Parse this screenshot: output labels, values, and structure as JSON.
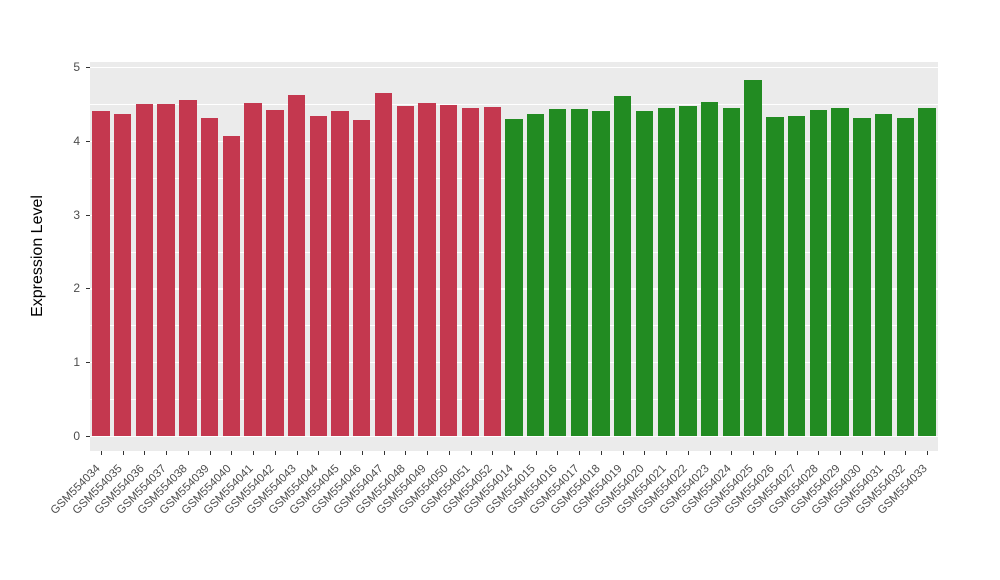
{
  "chart_data": {
    "type": "bar",
    "title": "",
    "xlabel": "",
    "ylabel": "Expression Level",
    "ylim": [
      0,
      5
    ],
    "yticks": [
      0,
      1,
      2,
      3,
      4,
      5
    ],
    "grid": "on",
    "legend": "none",
    "panel_background": "#ebebeb",
    "gridline_color": "#ffffff",
    "categories": [
      "GSM554034",
      "GSM554035",
      "GSM554036",
      "GSM554037",
      "GSM554038",
      "GSM554039",
      "GSM554040",
      "GSM554041",
      "GSM554042",
      "GSM554043",
      "GSM554044",
      "GSM554045",
      "GSM554046",
      "GSM554047",
      "GSM554048",
      "GSM554049",
      "GSM554050",
      "GSM554051",
      "GSM554052",
      "GSM554014",
      "GSM554015",
      "GSM554016",
      "GSM554017",
      "GSM554018",
      "GSM554019",
      "GSM554020",
      "GSM554021",
      "GSM554022",
      "GSM554023",
      "GSM554024",
      "GSM554025",
      "GSM554026",
      "GSM554027",
      "GSM554028",
      "GSM554029",
      "GSM554030",
      "GSM554031",
      "GSM554032",
      "GSM554033"
    ],
    "values": [
      4.41,
      4.36,
      4.5,
      4.5,
      4.55,
      4.31,
      4.06,
      4.51,
      4.42,
      4.62,
      4.33,
      4.4,
      4.28,
      4.65,
      4.47,
      4.51,
      4.48,
      4.45,
      4.46,
      4.3,
      4.36,
      4.43,
      4.43,
      4.41,
      4.61,
      4.4,
      4.44,
      4.47,
      4.53,
      4.45,
      4.83,
      4.32,
      4.34,
      4.42,
      4.45,
      4.31,
      4.36,
      4.31,
      4.44
    ],
    "groups": [
      "groupA",
      "groupA",
      "groupA",
      "groupA",
      "groupA",
      "groupA",
      "groupA",
      "groupA",
      "groupA",
      "groupA",
      "groupA",
      "groupA",
      "groupA",
      "groupA",
      "groupA",
      "groupA",
      "groupA",
      "groupA",
      "groupA",
      "groupB",
      "groupB",
      "groupB",
      "groupB",
      "groupB",
      "groupB",
      "groupB",
      "groupB",
      "groupB",
      "groupB",
      "groupB",
      "groupB",
      "groupB",
      "groupB",
      "groupB",
      "groupB",
      "groupB",
      "groupB",
      "groupB",
      "groupB"
    ],
    "group_colors": {
      "groupA": "#c4384f",
      "groupB": "#228b22"
    }
  }
}
